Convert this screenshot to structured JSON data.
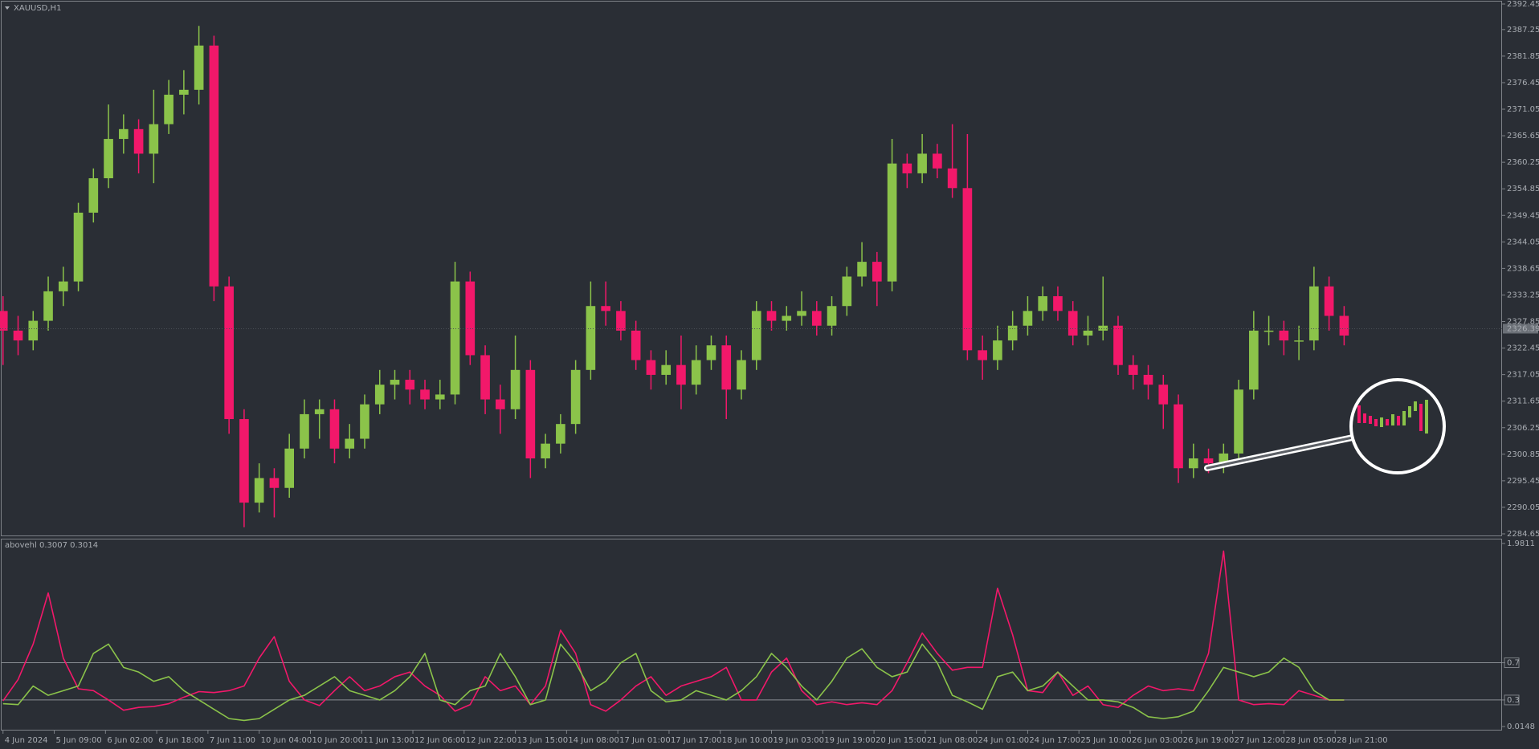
{
  "chart_data": [
    {
      "type": "candlestick",
      "title": "XAUUSD,H1",
      "x": [
        0,
        5,
        10,
        15,
        20,
        25,
        30,
        35,
        40,
        45,
        50,
        55,
        60,
        65,
        70,
        75,
        80,
        85,
        90,
        95,
        100,
        105,
        110,
        115,
        120,
        125,
        130,
        135,
        140,
        145,
        150,
        155,
        160,
        165,
        170,
        175,
        180,
        185,
        190,
        195,
        200,
        205,
        210,
        215,
        220,
        225,
        230,
        235,
        240,
        245,
        250,
        255,
        260,
        265,
        270,
        275,
        280,
        285,
        290,
        295,
        300,
        305,
        310,
        315,
        320,
        325,
        330,
        335,
        340,
        345,
        350,
        355,
        360,
        365,
        370,
        375,
        380,
        385,
        390,
        395,
        400,
        405,
        410,
        415,
        420,
        425,
        430,
        435,
        440,
        445
      ],
      "open": [
        2330,
        2326,
        2324,
        2328,
        2334,
        2336,
        2350,
        2357,
        2365,
        2367,
        2362,
        2368,
        2374,
        2375,
        2384,
        2335,
        2308,
        2291,
        2296,
        2294,
        2302,
        2309,
        2310,
        2302,
        2304,
        2311,
        2315,
        2316,
        2314,
        2312,
        2313,
        2336,
        2321,
        2312,
        2310,
        2318,
        2300,
        2303,
        2307,
        2318,
        2331,
        2330,
        2326,
        2320,
        2317,
        2319,
        2315,
        2320,
        2323,
        2314,
        2320,
        2330,
        2328,
        2329,
        2330,
        2327,
        2331,
        2337,
        2340,
        2336,
        2360,
        2358,
        2362,
        2359,
        2355,
        2322,
        2320,
        2324,
        2327,
        2330,
        2333,
        2330,
        2325,
        2326,
        2327,
        2319,
        2317,
        2315,
        2311,
        2298,
        2300,
        2299,
        2301,
        2314,
        2326,
        2326,
        2324,
        2324,
        2335,
        2329
      ],
      "high": [
        2333,
        2329,
        2330,
        2337,
        2339,
        2352,
        2359,
        2372,
        2370,
        2369,
        2375,
        2377,
        2379,
        2388,
        2386,
        2337,
        2310,
        2299,
        2298,
        2305,
        2312,
        2312,
        2312,
        2307,
        2313,
        2318,
        2318,
        2318,
        2316,
        2316,
        2340,
        2338,
        2323,
        2315,
        2325,
        2320,
        2305,
        2309,
        2320,
        2336,
        2336,
        2332,
        2328,
        2322,
        2322,
        2325,
        2323,
        2325,
        2325,
        2322,
        2332,
        2332,
        2331,
        2334,
        2332,
        2333,
        2339,
        2344,
        2342,
        2365,
        2362,
        2366,
        2364,
        2368,
        2366,
        2325,
        2327,
        2330,
        2333,
        2335,
        2335,
        2332,
        2329,
        2337,
        2329,
        2321,
        2319,
        2317,
        2313,
        2303,
        2302,
        2303,
        2316,
        2330,
        2329,
        2328,
        2327,
        2339,
        2337,
        2331
      ],
      "low": [
        2319,
        2321,
        2322,
        2326,
        2331,
        2334,
        2348,
        2355,
        2362,
        2358,
        2356,
        2366,
        2370,
        2372,
        2332,
        2305,
        2286,
        2289,
        2288,
        2292,
        2300,
        2304,
        2299,
        2300,
        2302,
        2309,
        2312,
        2311,
        2310,
        2310,
        2311,
        2319,
        2309,
        2305,
        2308,
        2296,
        2298,
        2301,
        2305,
        2316,
        2327,
        2324,
        2318,
        2314,
        2315,
        2310,
        2313,
        2318,
        2308,
        2312,
        2318,
        2326,
        2326,
        2327,
        2325,
        2325,
        2329,
        2335,
        2331,
        2334,
        2355,
        2356,
        2357,
        2353,
        2320,
        2316,
        2318,
        2322,
        2325,
        2328,
        2328,
        2323,
        2323,
        2324,
        2317,
        2314,
        2312,
        2306,
        2295,
        2296,
        2297,
        2297,
        2299,
        2312,
        2323,
        2321,
        2320,
        2322,
        2326,
        2323
      ],
      "close": [
        2326,
        2324,
        2328,
        2334,
        2336,
        2350,
        2357,
        2365,
        2367,
        2362,
        2368,
        2374,
        2375,
        2384,
        2335,
        2308,
        2291,
        2296,
        2294,
        2302,
        2309,
        2310,
        2302,
        2304,
        2311,
        2315,
        2316,
        2314,
        2312,
        2313,
        2336,
        2321,
        2312,
        2310,
        2318,
        2300,
        2303,
        2307,
        2318,
        2331,
        2330,
        2326,
        2320,
        2317,
        2319,
        2315,
        2320,
        2323,
        2314,
        2320,
        2330,
        2328,
        2329,
        2330,
        2327,
        2331,
        2337,
        2340,
        2336,
        2360,
        2358,
        2362,
        2359,
        2355,
        2322,
        2320,
        2324,
        2327,
        2330,
        2333,
        2330,
        2325,
        2326,
        2327,
        2319,
        2317,
        2315,
        2311,
        2298,
        2300,
        2299,
        2301,
        2314,
        2326,
        2326,
        2324,
        2324,
        2335,
        2329,
        2325
      ],
      "up_color": "#8bc34a",
      "down_color": "#f2186a",
      "current_price": 2326.39,
      "xlim": [
        -1,
        497.4
      ],
      "ylim": [
        2284.65,
        2392.45
      ],
      "yticks": [
        2392.45,
        2387.25,
        2381.85,
        2376.45,
        2371.05,
        2365.65,
        2360.25,
        2354.85,
        2349.45,
        2344.05,
        2338.65,
        2333.25,
        2327.85,
        2322.45,
        2317.05,
        2311.65,
        2306.25,
        2300.85,
        2295.45,
        2290.05,
        2284.65
      ],
      "xticks": [
        {
          "value": 0,
          "label": "4 Jun 2024"
        },
        {
          "value": 17,
          "label": "5 Jun 09:00"
        },
        {
          "value": 34,
          "label": "6 Jun 02:00"
        },
        {
          "value": 51,
          "label": "6 Jun 18:00"
        },
        {
          "value": 68,
          "label": "7 Jun 11:00"
        },
        {
          "value": 85,
          "label": "10 Jun 04:00"
        },
        {
          "value": 102,
          "label": "10 Jun 20:00"
        },
        {
          "value": 119,
          "label": "11 Jun 13:00"
        },
        {
          "value": 136,
          "label": "12 Jun 06:00"
        },
        {
          "value": 153,
          "label": "12 Jun 22:00"
        },
        {
          "value": 170,
          "label": "13 Jun 15:00"
        },
        {
          "value": 187,
          "label": "14 Jun 08:00"
        },
        {
          "value": 204,
          "label": "17 Jun 01:00"
        },
        {
          "value": 221,
          "label": "17 Jun 17:00"
        },
        {
          "value": 238,
          "label": "18 Jun 10:00"
        },
        {
          "value": 255,
          "label": "19 Jun 03:00"
        },
        {
          "value": 272,
          "label": "19 Jun 19:00"
        },
        {
          "value": 289,
          "label": "20 Jun 15:00"
        },
        {
          "value": 306,
          "label": "21 Jun 08:00"
        },
        {
          "value": 323,
          "label": "24 Jun 01:00"
        },
        {
          "value": 340,
          "label": "24 Jun 17:00"
        },
        {
          "value": 357,
          "label": "25 Jun 10:00"
        },
        {
          "value": 374,
          "label": "26 Jun 03:00"
        },
        {
          "value": 391,
          "label": "26 Jun 19:00"
        },
        {
          "value": 408,
          "label": "27 Jun 12:00"
        },
        {
          "value": 425,
          "label": "28 Jun 05:00"
        },
        {
          "value": 442,
          "label": "28 Jun 21:00"
        }
      ]
    },
    {
      "type": "line",
      "title": "abovehl 0.3007 0.3014",
      "x": [
        0,
        5,
        10,
        15,
        20,
        25,
        30,
        35,
        40,
        45,
        50,
        55,
        60,
        65,
        70,
        75,
        80,
        85,
        90,
        95,
        100,
        105,
        110,
        115,
        120,
        125,
        130,
        135,
        140,
        145,
        150,
        155,
        160,
        165,
        170,
        175,
        180,
        185,
        190,
        195,
        200,
        205,
        210,
        215,
        220,
        225,
        230,
        235,
        240,
        245,
        250,
        255,
        260,
        265,
        270,
        275,
        280,
        285,
        290,
        295,
        300,
        305,
        310,
        315,
        320,
        325,
        330,
        335,
        340,
        345,
        350,
        355,
        360,
        365,
        370,
        375,
        380,
        385,
        390,
        395,
        400,
        405,
        410,
        415,
        420,
        425,
        430,
        435,
        440,
        445
      ],
      "series": [
        {
          "color": "#f2186a",
          "values": [
            0.29,
            0.52,
            0.9,
            1.45,
            0.75,
            0.42,
            0.4,
            0.3,
            0.19,
            0.22,
            0.23,
            0.26,
            0.33,
            0.39,
            0.38,
            0.4,
            0.45,
            0.75,
            0.98,
            0.5,
            0.3,
            0.24,
            0.4,
            0.55,
            0.4,
            0.45,
            0.55,
            0.6,
            0.45,
            0.35,
            0.18,
            0.25,
            0.55,
            0.4,
            0.45,
            0.25,
            0.45,
            1.05,
            0.8,
            0.25,
            0.18,
            0.3,
            0.45,
            0.55,
            0.35,
            0.45,
            0.5,
            0.55,
            0.65,
            0.3,
            0.3,
            0.6,
            0.75,
            0.4,
            0.25,
            0.28,
            0.25,
            0.27,
            0.25,
            0.4,
            0.7,
            1.02,
            0.8,
            0.62,
            0.65,
            0.65,
            1.5,
            1.0,
            0.4,
            0.38,
            0.6,
            0.35,
            0.45,
            0.25,
            0.22,
            0.35,
            0.45,
            0.4,
            0.42,
            0.4,
            0.8,
            1.9,
            0.3,
            0.25,
            0.26,
            0.25,
            0.4,
            0.35,
            0.3,
            0.3
          ]
        },
        {
          "color": "#8bc34a",
          "values": [
            0.26,
            0.25,
            0.45,
            0.35,
            0.4,
            0.45,
            0.8,
            0.9,
            0.65,
            0.6,
            0.5,
            0.55,
            0.4,
            0.3,
            0.2,
            0.1,
            0.08,
            0.1,
            0.2,
            0.3,
            0.35,
            0.45,
            0.55,
            0.4,
            0.35,
            0.3,
            0.4,
            0.55,
            0.8,
            0.3,
            0.25,
            0.4,
            0.45,
            0.8,
            0.55,
            0.25,
            0.3,
            0.9,
            0.7,
            0.4,
            0.5,
            0.7,
            0.8,
            0.4,
            0.28,
            0.3,
            0.4,
            0.35,
            0.3,
            0.4,
            0.55,
            0.8,
            0.65,
            0.45,
            0.3,
            0.5,
            0.75,
            0.85,
            0.65,
            0.55,
            0.6,
            0.9,
            0.7,
            0.35,
            0.28,
            0.2,
            0.55,
            0.6,
            0.4,
            0.45,
            0.6,
            0.45,
            0.3,
            0.3,
            0.28,
            0.22,
            0.12,
            0.1,
            0.12,
            0.18,
            0.4,
            0.65,
            0.6,
            0.55,
            0.6,
            0.75,
            0.65,
            0.4,
            0.3,
            0.3
          ]
        }
      ],
      "ylim": [
        0.0148,
        1.9811
      ],
      "yticks": [
        1.9811,
        0.7,
        0.3,
        0.0148
      ],
      "levels": [
        0.7,
        0.3
      ]
    }
  ]
}
